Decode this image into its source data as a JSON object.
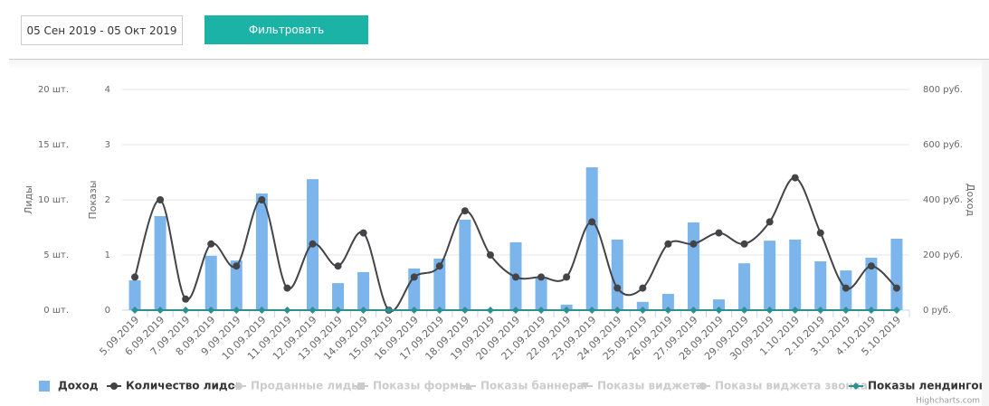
{
  "filter": {
    "date_range": "05 Сен 2019 - 05 Окт 2019",
    "button": "Фильтровать"
  },
  "chart_data": {
    "type": "combo",
    "credits": "Highcharts.com",
    "categories": [
      "5.09.2019",
      "6.09.2019",
      "7.09.2019",
      "8.09.2019",
      "9.09.2019",
      "10.09.2019",
      "11.09.2019",
      "12.09.2019",
      "13.09.2019",
      "14.09.2019",
      "15.09.2019",
      "16.09.2019",
      "17.09.2019",
      "18.09.2019",
      "19.09.2019",
      "20.09.2019",
      "21.09.2019",
      "22.09.2019",
      "23.09.2019",
      "24.09.2019",
      "25.09.2019",
      "26.09.2019",
      "27.09.2019",
      "28.09.2019",
      "29.09.2019",
      "30.09.2019",
      "1.10.2019",
      "2.10.2019",
      "3.10.2019",
      "4.10.2019",
      "5.10.2019"
    ],
    "ylabel": "Лиды",
    "ylim": [
      0,
      20
    ],
    "yticks": [
      {
        "value": 0,
        "label": "0 шт."
      },
      {
        "value": 5,
        "label": "5 шт."
      },
      {
        "value": 10,
        "label": "10 шт."
      },
      {
        "value": 15,
        "label": "15 шт."
      },
      {
        "value": 20,
        "label": "20 шт."
      }
    ],
    "y2label": "Показы",
    "y2lim": [
      0,
      4
    ],
    "y2ticks": [
      0,
      1,
      2,
      3,
      4
    ],
    "y3label": "Доход",
    "y3lim": [
      0,
      800
    ],
    "y3ticks": [
      {
        "value": 0,
        "label": "0 руб."
      },
      {
        "value": 200,
        "label": "200 руб."
      },
      {
        "value": 400,
        "label": "400 руб."
      },
      {
        "value": 600,
        "label": "600 руб."
      },
      {
        "value": 800,
        "label": "800 руб."
      }
    ],
    "grid": true,
    "series": [
      {
        "name": "Доход",
        "type": "bar",
        "axis": "y3",
        "color": "#7cb5ec",
        "marker": "square",
        "values": [
          108,
          341,
          0,
          197,
          180,
          423,
          0,
          475,
          98,
          138,
          0,
          151,
          187,
          328,
          0,
          246,
          115,
          20,
          518,
          256,
          30,
          59,
          318,
          39,
          170,
          252,
          256,
          177,
          144,
          190,
          259
        ]
      },
      {
        "name": "Количество лидов",
        "type": "spline",
        "axis": "y",
        "color": "#434348",
        "marker": "circle",
        "values": [
          3,
          10,
          1,
          6,
          4,
          10,
          2,
          6,
          4,
          7,
          0,
          3,
          4,
          9,
          5,
          3,
          3,
          3,
          8,
          2,
          2,
          6,
          6,
          7,
          6,
          8,
          12,
          7,
          2,
          4,
          2
        ]
      },
      {
        "name": "Проданные лиды",
        "visible": false,
        "marker": "circle"
      },
      {
        "name": "Показы формы",
        "visible": false,
        "marker": "square"
      },
      {
        "name": "Показы баннера",
        "visible": false,
        "marker": "triangle"
      },
      {
        "name": "Показы виджета",
        "visible": false,
        "marker": "triangle-down"
      },
      {
        "name": "Показы виджета звонка",
        "visible": false,
        "marker": "circle"
      },
      {
        "name": "Показы лендингов",
        "type": "line",
        "axis": "y2",
        "color": "#2b908f",
        "marker": "diamond",
        "values": [
          0,
          0,
          0,
          0,
          0,
          0,
          0,
          0,
          0,
          0,
          0,
          0,
          0,
          0,
          0,
          0,
          0,
          0,
          0,
          0,
          0,
          0,
          0,
          0,
          0,
          0,
          0,
          0,
          0,
          0,
          0
        ]
      }
    ]
  }
}
